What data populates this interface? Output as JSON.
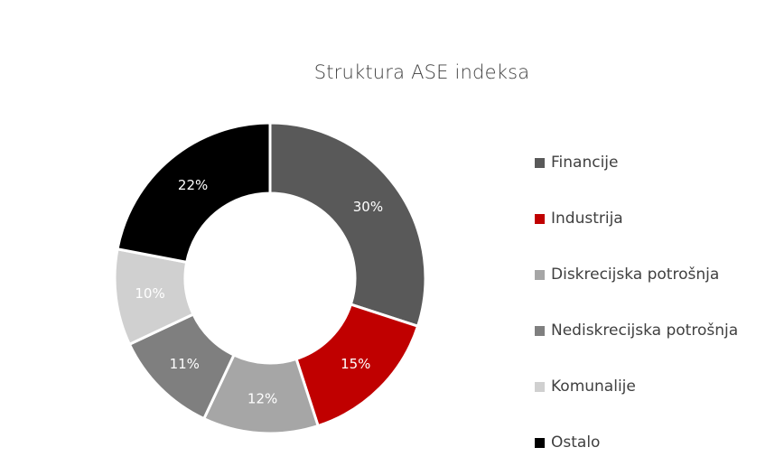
{
  "chart_data": {
    "type": "pie",
    "variant": "donut",
    "title": "Struktura ASE indeksa",
    "categories": [
      "Financije",
      "Industrija",
      "Diskrecijska potrošnja",
      "Nediskrecijska potrošnja",
      "Komunalije",
      "Ostalo"
    ],
    "values": [
      30,
      15,
      12,
      11,
      10,
      22
    ],
    "labels": [
      "30%",
      "15%",
      "12%",
      "11%",
      "10%",
      "22%"
    ],
    "colors": [
      "#595959",
      "#c00000",
      "#a6a6a6",
      "#7f7f7f",
      "#d0d0d0",
      "#000000"
    ],
    "legend_position": "right"
  }
}
